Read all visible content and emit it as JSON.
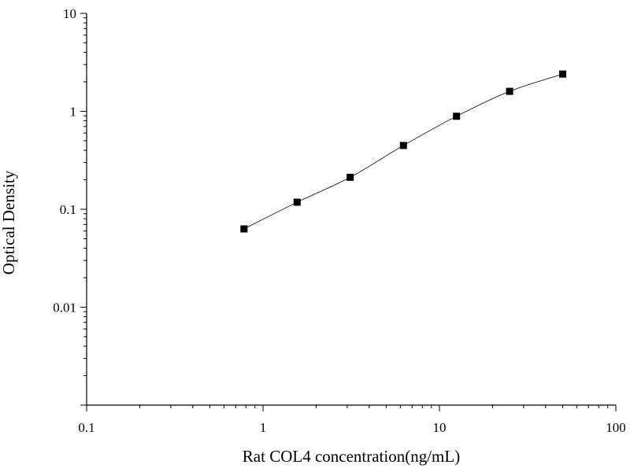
{
  "chart_data": {
    "type": "scatter",
    "title": "",
    "xlabel": "Rat COL4 concentration(ng/mL)",
    "ylabel": "Optical Density",
    "x_scale": "log",
    "y_scale": "log",
    "xlim": [
      0.1,
      100
    ],
    "ylim": [
      0.001,
      10
    ],
    "x_ticks": [
      {
        "value": 0.1,
        "label": "0.1"
      },
      {
        "value": 1,
        "label": "1"
      },
      {
        "value": 10,
        "label": "10"
      },
      {
        "value": 100,
        "label": "100"
      }
    ],
    "y_ticks": [
      {
        "value": 0.01,
        "label": "0.01"
      },
      {
        "value": 0.1,
        "label": "0.1"
      },
      {
        "value": 1,
        "label": "1"
      },
      {
        "value": 10,
        "label": "10"
      }
    ],
    "grid": false,
    "legend": "none",
    "series": [
      {
        "marker": "square",
        "fit_curve": true,
        "color": "#000000",
        "x": [
          0.78,
          1.56,
          3.12,
          6.25,
          12.5,
          25,
          50
        ],
        "y": [
          0.063,
          0.118,
          0.212,
          0.448,
          0.89,
          1.6,
          2.4
        ]
      }
    ]
  }
}
